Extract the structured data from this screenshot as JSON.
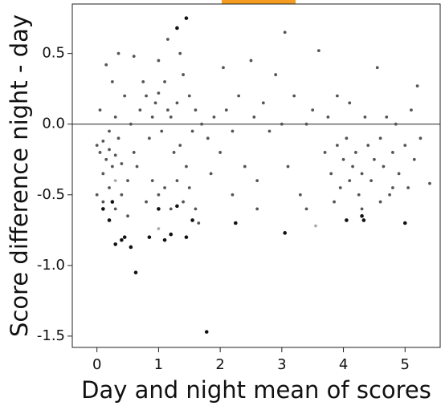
{
  "chart_data": {
    "type": "scatter",
    "xlabel": "Day and night mean of scores",
    "ylabel": "Score difference night - day",
    "xlim": [
      -0.4,
      5.57
    ],
    "ylim": [
      -1.58,
      0.85
    ],
    "xticks": [
      0,
      1,
      2,
      3,
      4,
      5
    ],
    "yticks": [
      0.5,
      {
        "value": 0,
        "label": "0.0"
      },
      -0.5,
      {
        "value": -1,
        "label": "-1.0"
      },
      -1.5
    ],
    "hline": 0,
    "series": [
      {
        "color": "#555555",
        "x": [
          0.0,
          0.05,
          0.1,
          0.15,
          0.2,
          0.25,
          0.3,
          0.35,
          0.4,
          0.1,
          0.2,
          0.3,
          0.05,
          0.15,
          0.25,
          0.35,
          0.45,
          0.5,
          0.55,
          0.6,
          0.0,
          0.1,
          0.2,
          0.3,
          0.4,
          0.5,
          0.65,
          0.7,
          0.75,
          0.8,
          0.85,
          0.9,
          0.95,
          1.0,
          1.05,
          1.1,
          1.15,
          1.2,
          1.25,
          1.3,
          1.35,
          1.4,
          1.45,
          1.5,
          1.55,
          1.6,
          0.9,
          1.0,
          1.1,
          1.2,
          1.3,
          1.4,
          1.5,
          1.6,
          0.8,
          1.0,
          1.15,
          1.35,
          0.6,
          1.7,
          1.8,
          1.9,
          2.0,
          2.05,
          2.1,
          2.2,
          2.3,
          2.4,
          2.5,
          2.55,
          2.6,
          2.7,
          2.8,
          2.9,
          3.0,
          3.05,
          3.1,
          3.2,
          3.3,
          3.4,
          3.5,
          3.6,
          3.7,
          3.75,
          3.8,
          3.9,
          3.95,
          4.0,
          4.05,
          4.1,
          4.15,
          4.2,
          4.25,
          4.3,
          4.35,
          4.4,
          4.45,
          4.5,
          4.55,
          4.6,
          4.65,
          4.7,
          4.75,
          4.8,
          4.85,
          4.9,
          5.0,
          5.05,
          5.1,
          5.15,
          5.2,
          5.25,
          5.4,
          3.9,
          4.1,
          4.3,
          4.6,
          4.8,
          3.85,
          2.2,
          1.85,
          1.65,
          2.6,
          3.4
        ],
        "values": [
          -0.15,
          -0.2,
          -0.12,
          -0.25,
          -0.18,
          -0.3,
          -0.22,
          -0.1,
          -0.28,
          -0.35,
          -0.05,
          0.05,
          0.1,
          0.42,
          0.3,
          0.5,
          0.2,
          -0.4,
          0.0,
          -0.2,
          -0.5,
          -0.55,
          -0.45,
          -0.6,
          -0.5,
          -0.65,
          -0.3,
          0.1,
          0.3,
          0.2,
          -0.1,
          0.05,
          0.15,
          0.22,
          -0.05,
          0.3,
          0.1,
          0.05,
          -0.2,
          0.15,
          -0.15,
          0.35,
          -0.3,
          0.2,
          -0.05,
          0.1,
          -0.4,
          -0.5,
          -0.45,
          -0.6,
          -0.4,
          -0.55,
          -0.45,
          -0.6,
          -0.55,
          0.45,
          0.6,
          0.5,
          0.48,
          0.0,
          -0.1,
          0.05,
          -0.2,
          0.4,
          0.1,
          -0.05,
          0.2,
          -0.3,
          0.45,
          0.05,
          -0.4,
          0.15,
          -0.05,
          0.35,
          0.0,
          0.65,
          -0.3,
          0.2,
          -0.5,
          0.0,
          0.1,
          0.52,
          -0.2,
          0.05,
          -0.35,
          -0.15,
          -0.45,
          -0.25,
          -0.1,
          -0.4,
          -0.3,
          -0.2,
          -0.5,
          -0.35,
          0.05,
          -0.15,
          -0.4,
          -0.25,
          0.4,
          -0.1,
          -0.3,
          0.05,
          -0.5,
          -0.2,
          0.0,
          -0.35,
          -0.15,
          -0.45,
          0.1,
          -0.25,
          0.27,
          -0.1,
          -0.42,
          0.2,
          0.15,
          -0.6,
          -0.55,
          -0.45,
          -0.55,
          -0.5,
          -0.35,
          -0.7,
          -0.6,
          -0.6
        ]
      },
      {
        "color": "#111111",
        "x": [
          0.3,
          0.4,
          0.55,
          0.63,
          0.45,
          0.2,
          0.85,
          1.0,
          1.1,
          1.2,
          1.3,
          1.45,
          1.55,
          1.3,
          1.45,
          1.78,
          2.25,
          3.05,
          4.05,
          4.3,
          4.33,
          5.0,
          0.25,
          0.1
        ],
        "values": [
          -0.85,
          -0.82,
          -0.87,
          -1.05,
          -0.8,
          -0.68,
          -0.8,
          -0.6,
          -0.82,
          -0.78,
          -0.58,
          -0.8,
          -0.68,
          0.68,
          0.75,
          -1.47,
          -0.7,
          -0.77,
          -0.68,
          -0.65,
          -0.68,
          -0.7,
          -0.55,
          -0.6
        ]
      },
      {
        "color": "#aaaaaa",
        "x": [
          1.0,
          3.55,
          0.3
        ],
        "values": [
          -0.74,
          -0.72,
          -0.4
        ]
      }
    ]
  }
}
